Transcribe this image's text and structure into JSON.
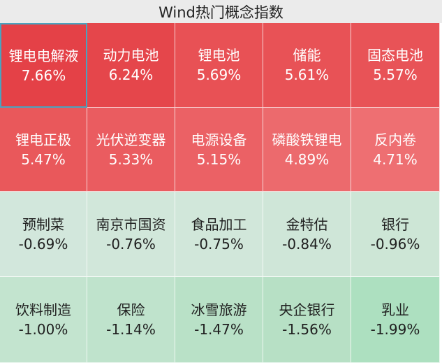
{
  "header": {
    "title": "Wind热门概念指数"
  },
  "tiles": [
    {
      "name": "锂电电解液",
      "change": "7.66%",
      "color": "#e44147",
      "selected": true
    },
    {
      "name": "动力电池",
      "change": "6.24%",
      "color": "#e5464b"
    },
    {
      "name": "锂电池",
      "change": "5.69%",
      "color": "#e85155"
    },
    {
      "name": "储能",
      "change": "5.61%",
      "color": "#e85256"
    },
    {
      "name": "固态电池",
      "change": "5.57%",
      "color": "#e85357"
    },
    {
      "name": "锂电正极",
      "change": "5.47%",
      "color": "#e9585b"
    },
    {
      "name": "光伏逆变器",
      "change": "5.33%",
      "color": "#ea5c60"
    },
    {
      "name": "电源设备",
      "change": "5.15%",
      "color": "#eb6165"
    },
    {
      "name": "磷酸铁锂电",
      "change": "4.89%",
      "color": "#ec6a6d"
    },
    {
      "name": "反内卷",
      "change": "4.71%",
      "color": "#ee6f72"
    },
    {
      "name": "预制菜",
      "change": "-0.69%",
      "color": "#d2e7dc"
    },
    {
      "name": "南京市国资",
      "change": "-0.76%",
      "color": "#d1e7da"
    },
    {
      "name": "食品加工",
      "change": "-0.75%",
      "color": "#d1e7da"
    },
    {
      "name": "金特估",
      "change": "-0.84%",
      "color": "#cfe6d8"
    },
    {
      "name": "银行",
      "change": "-0.96%",
      "color": "#cde6d6"
    },
    {
      "name": "饮料制造",
      "change": "-1.00%",
      "color": "#c3e4cf"
    },
    {
      "name": "保险",
      "change": "-1.14%",
      "color": "#bfe3cc"
    },
    {
      "name": "冰雪旅游",
      "change": "-1.47%",
      "color": "#b9e1c7"
    },
    {
      "name": "央企银行",
      "change": "-1.56%",
      "color": "#b7e0c5"
    },
    {
      "name": "乳业",
      "change": "-1.99%",
      "color": "#ade0c0"
    }
  ]
}
